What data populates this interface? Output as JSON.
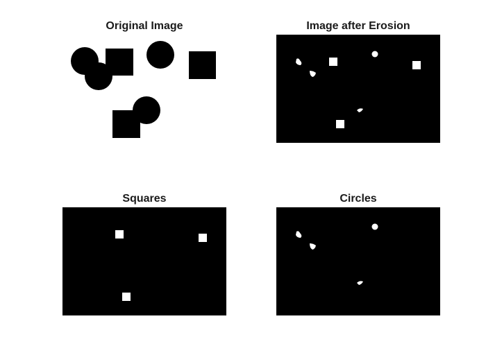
{
  "figure": {
    "panels": [
      {
        "id": "original",
        "title": "Original Image",
        "background": "#ffffff",
        "foreground": "#000000"
      },
      {
        "id": "eroded",
        "title": "Image after Erosion",
        "background": "#000000",
        "foreground": "#ffffff"
      },
      {
        "id": "squares",
        "title": "Squares",
        "background": "#000000",
        "foreground": "#ffffff"
      },
      {
        "id": "circles",
        "title": "Circles",
        "background": "#000000",
        "foreground": "#ffffff"
      }
    ]
  }
}
